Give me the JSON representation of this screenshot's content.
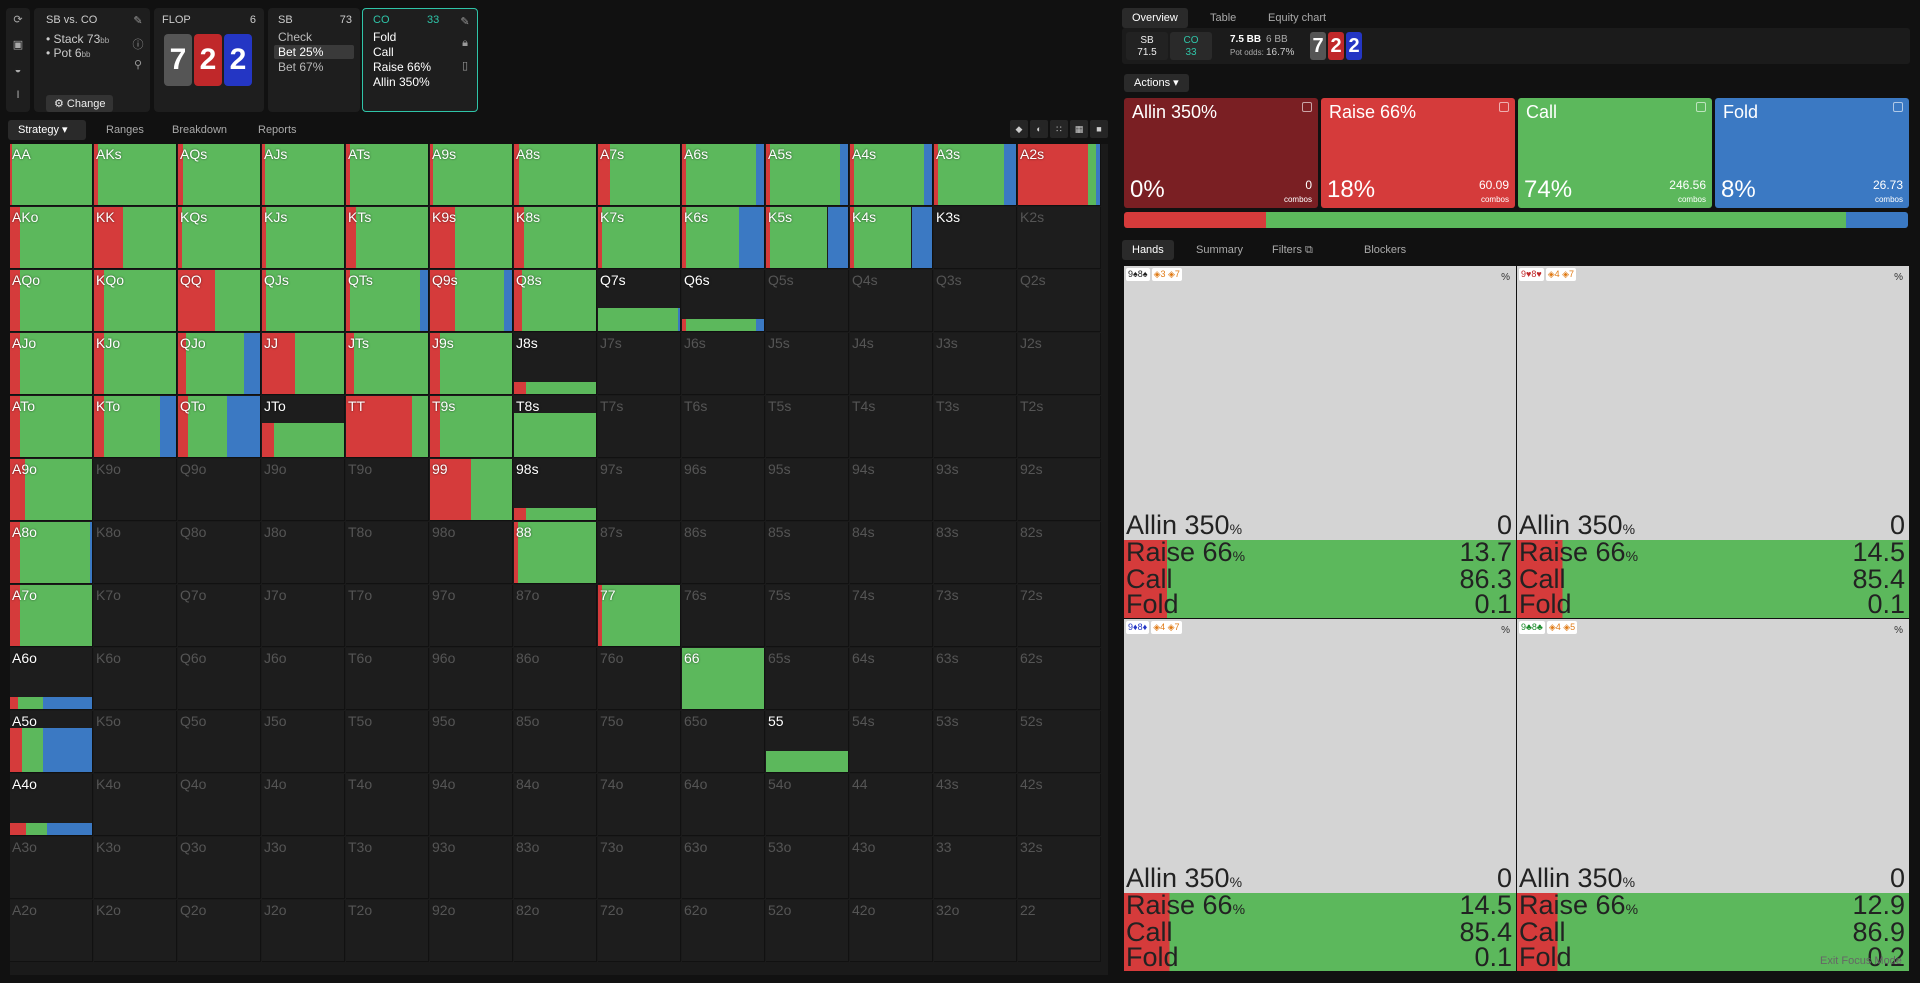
{
  "toolbar_icons": [
    "refresh-icon",
    "save-icon",
    "gamepad-icon",
    "text-cursor-icon"
  ],
  "match": {
    "title": "SB vs. CO",
    "stack_label": "Stack 73",
    "stack_unit": "bb",
    "pot_label": "Pot 6",
    "pot_unit": "bb",
    "change_label": "Change"
  },
  "flop": {
    "label": "FLOP",
    "count": "6",
    "cards": [
      {
        "rank": "7",
        "color": "#555"
      },
      {
        "rank": "2",
        "color": "#c0282a"
      },
      {
        "rank": "2",
        "color": "#2436c4"
      }
    ]
  },
  "sb_node": {
    "label": "SB",
    "stack": "73",
    "options": [
      "Check",
      "Bet 25%",
      "Bet 67%"
    ],
    "selected": 1
  },
  "co_node": {
    "label": "CO",
    "stack": "33",
    "options": [
      "Fold",
      "Call",
      "Raise 66%",
      "Allin 350%"
    ]
  },
  "left_tabs": [
    "Strategy",
    "Ranges",
    "Breakdown",
    "Reports"
  ],
  "colors": {
    "allin": "#7a1f23",
    "raise": "#d53b3b",
    "call": "#5cb85c",
    "fold": "#3b79c3",
    "accent": "#2fc4a8"
  },
  "grid": {
    "ranks": [
      "A",
      "K",
      "Q",
      "J",
      "T",
      "9",
      "8",
      "7",
      "6",
      "5",
      "4",
      "3",
      "2"
    ],
    "cells": {
      "AA": [
        0,
        0.02,
        0.98,
        0
      ],
      "AKs": [
        0,
        0.05,
        0.95,
        0
      ],
      "AQs": [
        0,
        0.06,
        0.94,
        0
      ],
      "AJs": [
        0,
        0.04,
        0.96,
        0
      ],
      "ATs": [
        0,
        0.05,
        0.95,
        0
      ],
      "A9s": [
        0,
        0.04,
        0.96,
        0
      ],
      "A8s": [
        0,
        0.06,
        0.94,
        0
      ],
      "A7s": [
        0,
        0.15,
        0.85,
        0
      ],
      "A6s": [
        0,
        0.05,
        0.85,
        0.1
      ],
      "A5s": [
        0,
        0.05,
        0.85,
        0.1
      ],
      "A4s": [
        0,
        0.05,
        0.85,
        0.1
      ],
      "A3s": [
        0,
        0.05,
        0.8,
        0.15
      ],
      "A2s": [
        0,
        0.85,
        0.1,
        0.05
      ],
      "AKo": [
        0,
        0.12,
        0.88,
        0
      ],
      "KK": [
        0,
        0.35,
        0.65,
        0
      ],
      "KQs": [
        0,
        0.05,
        0.95,
        0
      ],
      "KJs": [
        0,
        0.05,
        0.95,
        0
      ],
      "KTs": [
        0,
        0.12,
        0.88,
        0
      ],
      "K9s": [
        0,
        0.3,
        0.7,
        0
      ],
      "K8s": [
        0,
        0.12,
        0.88,
        0
      ],
      "K7s": [
        0,
        0.05,
        0.95,
        0
      ],
      "K6s": [
        0,
        0.05,
        0.65,
        0.3
      ],
      "K5s": [
        0,
        0.05,
        0.7,
        0.25
      ],
      "K4s": [
        0,
        0.05,
        0.7,
        0.25
      ],
      "K3s": [
        0,
        0,
        0,
        0
      ],
      "AQo": [
        0,
        0.12,
        0.88,
        0
      ],
      "KQo": [
        0,
        0.12,
        0.88,
        0
      ],
      "QQ": [
        0,
        0.45,
        0.55,
        0
      ],
      "QJs": [
        0,
        0.05,
        0.95,
        0
      ],
      "QTs": [
        0,
        0.05,
        0.85,
        0.1
      ],
      "Q9s": [
        0,
        0.3,
        0.6,
        0.1
      ],
      "Q8s": [
        0,
        0.1,
        0.9,
        0
      ],
      "AJo": [
        0,
        0.12,
        0.88,
        0
      ],
      "KJo": [
        0,
        0.12,
        0.88,
        0
      ],
      "QJo": [
        0,
        0.1,
        0.7,
        0.2
      ],
      "JJ": [
        0,
        0.4,
        0.6,
        0
      ],
      "JTs": [
        0,
        0.1,
        0.9,
        0
      ],
      "J9s": [
        0,
        0.12,
        0.88,
        0
      ],
      "ATo": [
        0,
        0.12,
        0.88,
        0
      ],
      "KTo": [
        0,
        0.12,
        0.68,
        0.2
      ],
      "QTo": [
        0,
        0.12,
        0.48,
        0.4
      ],
      "TT": [
        0,
        0.8,
        0.2,
        0
      ],
      "T9s": [
        0,
        0.12,
        0.88,
        0
      ],
      "A9o": [
        0,
        0.18,
        0.82,
        0
      ],
      "99": [
        0,
        0.5,
        0.5,
        0
      ],
      "A8o": [
        0,
        0.12,
        0.85,
        0.03
      ],
      "88": [
        0,
        0.05,
        0.95,
        0
      ],
      "A7o": [
        0,
        0.12,
        0.88,
        0
      ],
      "77": [
        0,
        0.05,
        0.95,
        0
      ],
      "66": [
        0,
        0,
        1,
        0
      ]
    },
    "partial": {
      "Q7s": {
        "h": 0.38,
        "s": [
          0,
          0,
          0.98,
          0.02
        ]
      },
      "Q6s": {
        "h": 0.2,
        "s": [
          0,
          0.05,
          0.85,
          0.1
        ]
      },
      "J8s": {
        "h": 0.2,
        "s": [
          0,
          0.15,
          0.85,
          0
        ]
      },
      "JTo": {
        "h": 0.55,
        "s": [
          0,
          0.15,
          0.85,
          0
        ]
      },
      "T8s": {
        "h": 0.72,
        "s": [
          0,
          0,
          1,
          0
        ]
      },
      "98s": {
        "h": 0.2,
        "s": [
          0,
          0.15,
          0.85,
          0
        ]
      },
      "A6o": {
        "h": 0.2,
        "s": [
          0,
          0.1,
          0.3,
          0.6
        ]
      },
      "A5o": {
        "h": 0.72,
        "s": [
          0,
          0.15,
          0.25,
          0.6
        ]
      },
      "55": {
        "h": 0.35,
        "s": [
          0,
          0,
          1,
          0
        ]
      },
      "A4o": {
        "h": 0.2,
        "s": [
          0,
          0.2,
          0.25,
          0.55
        ]
      }
    }
  },
  "right_tabs": [
    "Overview",
    "Table",
    "Equity chart"
  ],
  "info": {
    "sb_label": "SB",
    "sb_val": "71.5",
    "co_label": "CO",
    "co_val": "33",
    "pot": "7.5 BB",
    "bb": "6 BB",
    "odds_label": "Pot odds:",
    "odds": "16.7%",
    "board": [
      {
        "rank": "7",
        "color": "#555"
      },
      {
        "rank": "2",
        "color": "#c0282a"
      },
      {
        "rank": "2",
        "color": "#2436c4"
      }
    ]
  },
  "actions_label": "Actions",
  "action_boxes": [
    {
      "name": "Allin 350%",
      "pct": "0%",
      "combos": "0",
      "combos_label": "combos",
      "color": "#7a1f23",
      "freq": 0
    },
    {
      "name": "Raise 66%",
      "pct": "18%",
      "combos": "60.09",
      "combos_label": "combos",
      "color": "#d53b3b",
      "freq": 0.148
    },
    {
      "name": "Call",
      "pct": "74%",
      "combos": "246.56",
      "combos_label": "combos",
      "color": "#5cb85c",
      "freq": 0.607
    },
    {
      "name": "Fold",
      "pct": "8%",
      "combos": "26.73",
      "combos_label": "combos",
      "color": "#3b79c3",
      "freq": 0.065
    }
  ],
  "freq_bar": [
    {
      "color": "#d53b3b",
      "w": 0.148
    },
    {
      "color": "#5cb85c",
      "w": 0.607
    },
    {
      "color": "#3b79c3",
      "w": 0.065
    }
  ],
  "hand_tabs": [
    "Hands",
    "Summary",
    "Filters",
    "Blockers"
  ],
  "hands": [
    {
      "cards": "9♠8♠",
      "cls1": "3",
      "cls2": "7",
      "pct": "%",
      "rows": [
        [
          "Allin 350",
          "%",
          "0"
        ],
        [
          "Raise 66",
          "%",
          "13.7"
        ],
        [
          "Call",
          "",
          "86.3"
        ],
        [
          "Fold",
          "",
          "0.1"
        ]
      ],
      "raise": 0.137
    },
    {
      "cards": "9♥8♥",
      "cls1": "4",
      "cls2": "7",
      "pct": "%",
      "rows": [
        [
          "Allin 350",
          "%",
          "0"
        ],
        [
          "Raise 66",
          "%",
          "14.5"
        ],
        [
          "Call",
          "",
          "85.4"
        ],
        [
          "Fold",
          "",
          "0.1"
        ]
      ],
      "raise": 0.145
    },
    {
      "cards": "9♦8♦",
      "cls1": "4",
      "cls2": "7",
      "pct": "%",
      "rows": [
        [
          "Allin 350",
          "%",
          "0"
        ],
        [
          "Raise 66",
          "%",
          "14.5"
        ],
        [
          "Call",
          "",
          "85.4"
        ],
        [
          "Fold",
          "",
          "0.1"
        ]
      ],
      "raise": 0.145
    },
    {
      "cards": "9♣8♣",
      "cls1": "4",
      "cls2": "5",
      "pct": "%",
      "rows": [
        [
          "Allin 350",
          "%",
          "0"
        ],
        [
          "Raise 66",
          "%",
          "12.9"
        ],
        [
          "Call",
          "",
          "86.9"
        ],
        [
          "Fold",
          "",
          "0.2"
        ]
      ],
      "raise": 0.129
    }
  ],
  "exit_label": "Exit Focus Mode"
}
